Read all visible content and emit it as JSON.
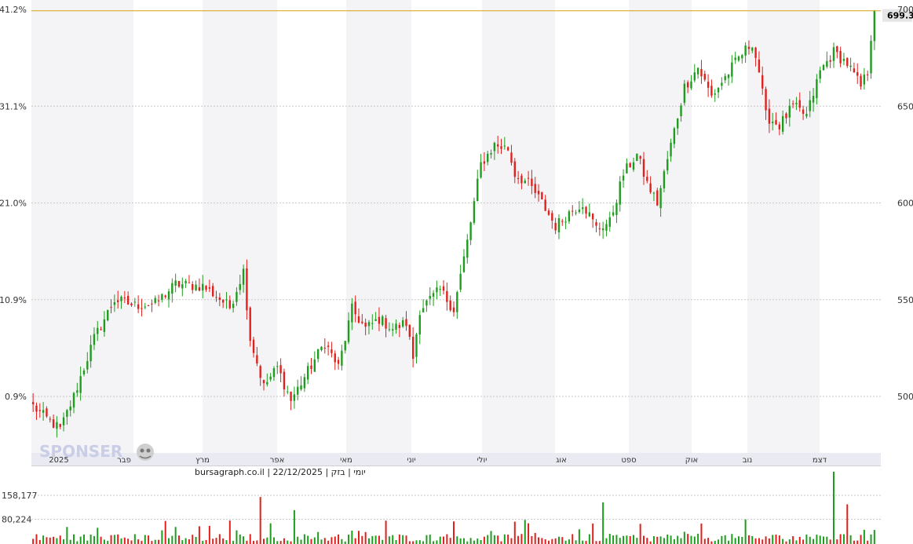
{
  "chart_data": {
    "type": "candlestick",
    "left_axis_ticks": [
      "41.2%",
      "31.1%",
      "21.0%",
      "10.9%",
      "0.9%"
    ],
    "right_axis_ticks": [
      700,
      650,
      600,
      550,
      500
    ],
    "ylim": [
      480,
      702
    ],
    "month_labels": [
      "2025",
      "פבר",
      "מרץ",
      "אפר",
      "מאי",
      "יוני",
      "יולי",
      "אוג",
      "ספט",
      "אוק",
      "נוב",
      "דצמ"
    ],
    "last_price": "699.30",
    "last_price_value": 699.3,
    "info_line": "יומי | בזק | 22/12/2025 | bursagraph.co.il",
    "volume_ticks": [
      "158,177",
      "80,224"
    ],
    "volume_tick_values": [
      158177,
      80224
    ],
    "volume_max": 250000,
    "keypoints": [
      [
        0,
        495
      ],
      [
        3,
        490
      ],
      [
        8,
        483
      ],
      [
        12,
        500
      ],
      [
        18,
        530
      ],
      [
        24,
        550
      ],
      [
        30,
        547
      ],
      [
        36,
        548
      ],
      [
        42,
        558
      ],
      [
        50,
        557
      ],
      [
        54,
        552
      ],
      [
        58,
        546
      ],
      [
        62,
        565
      ],
      [
        64,
        530
      ],
      [
        68,
        505
      ],
      [
        72,
        515
      ],
      [
        76,
        498
      ],
      [
        80,
        510
      ],
      [
        86,
        528
      ],
      [
        90,
        515
      ],
      [
        94,
        545
      ],
      [
        98,
        535
      ],
      [
        102,
        540
      ],
      [
        106,
        535
      ],
      [
        110,
        538
      ],
      [
        112,
        520
      ],
      [
        114,
        545
      ],
      [
        120,
        555
      ],
      [
        124,
        545
      ],
      [
        128,
        580
      ],
      [
        132,
        620
      ],
      [
        136,
        630
      ],
      [
        140,
        628
      ],
      [
        142,
        615
      ],
      [
        146,
        610
      ],
      [
        150,
        600
      ],
      [
        154,
        588
      ],
      [
        158,
        595
      ],
      [
        162,
        600
      ],
      [
        166,
        587
      ],
      [
        170,
        590
      ],
      [
        174,
        615
      ],
      [
        178,
        625
      ],
      [
        181,
        610
      ],
      [
        184,
        600
      ],
      [
        188,
        630
      ],
      [
        192,
        660
      ],
      [
        196,
        670
      ],
      [
        200,
        655
      ],
      [
        204,
        665
      ],
      [
        208,
        675
      ],
      [
        212,
        683
      ],
      [
        214,
        668
      ],
      [
        216,
        645
      ],
      [
        220,
        640
      ],
      [
        224,
        650
      ],
      [
        228,
        645
      ],
      [
        232,
        668
      ],
      [
        236,
        678
      ],
      [
        240,
        672
      ],
      [
        244,
        660
      ],
      [
        246,
        668
      ],
      [
        247,
        686
      ],
      [
        248,
        699.3
      ]
    ],
    "colors": {
      "up": "#1e9c1e",
      "down": "#e0201c",
      "last_price_line": "#d4a017",
      "grid": "#c8c8c8"
    }
  },
  "watermark": "SPONSER"
}
